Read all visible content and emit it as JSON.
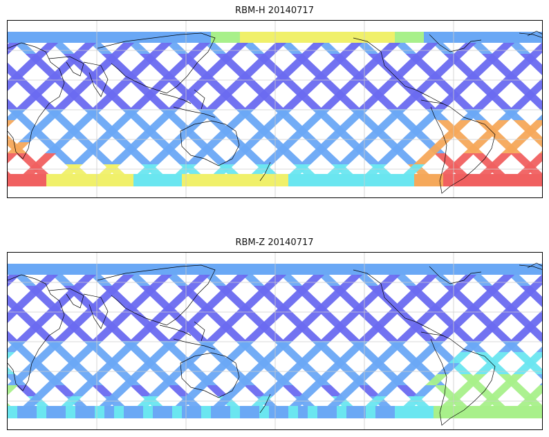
{
  "panels": [
    {
      "title": "RBM-H 20140717",
      "field": "high"
    },
    {
      "title": "RBM-Z 20140717",
      "field": "low"
    }
  ],
  "colors": {
    "swath_low": "#6a6af0",
    "swath_mid": "#6aa8f5",
    "swath_cyan": "#6ae6f0",
    "swath_green": "#a8f08a",
    "swath_yellow": "#f0f06a",
    "swath_orange": "#f5a85a",
    "swath_red": "#f06060",
    "coastline": "#000000",
    "gridline": "#cccccc"
  },
  "icons": [
    "coastline-map"
  ]
}
